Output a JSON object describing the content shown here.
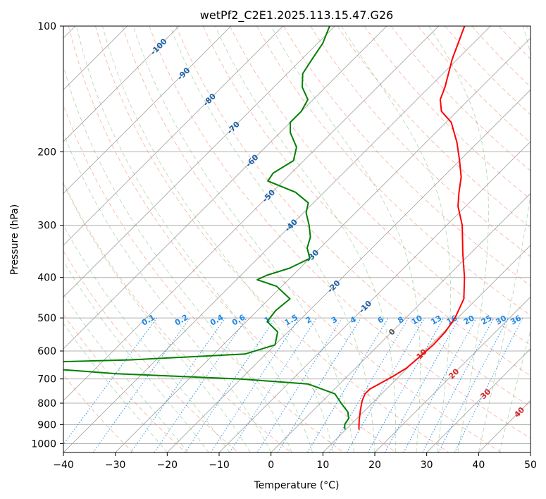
{
  "chart_data": {
    "type": "line",
    "subtype": "skew-t log-p diagram",
    "title": "wetPf2_C2E1.2025.113.15.47.G26",
    "xlabel": "Temperature (°C)",
    "ylabel": "Pressure (hPa)",
    "xlim": [
      -40,
      50
    ],
    "ylim": [
      1050,
      100
    ],
    "y_scale": "log",
    "grid": true,
    "x_ticks": [
      "−40",
      "−30",
      "−20",
      "−10",
      "0",
      "10",
      "20",
      "30",
      "40",
      "50"
    ],
    "y_ticks": [
      "100",
      "200",
      "300",
      "400",
      "500",
      "600",
      "700",
      "800",
      "900",
      "1000"
    ],
    "x_tick_values": [
      -40,
      -30,
      -20,
      -10,
      0,
      10,
      20,
      30,
      40,
      50
    ],
    "y_tick_values": [
      100,
      200,
      300,
      400,
      500,
      600,
      700,
      800,
      900,
      1000
    ],
    "series": [
      {
        "role": "temperature",
        "color": "#ff0000",
        "points": [
          {
            "p": 925,
            "t": 12.5
          },
          {
            "p": 880,
            "t": 10.8
          },
          {
            "p": 830,
            "t": 9.0
          },
          {
            "p": 790,
            "t": 7.6
          },
          {
            "p": 760,
            "t": 6.8
          },
          {
            "p": 740,
            "t": 6.8
          },
          {
            "p": 715,
            "t": 7.8
          },
          {
            "p": 690,
            "t": 8.8
          },
          {
            "p": 660,
            "t": 9.8
          },
          {
            "p": 620,
            "t": 10.2
          },
          {
            "p": 580,
            "t": 10.5
          },
          {
            "p": 540,
            "t": 10.3
          },
          {
            "p": 500,
            "t": 9.5
          },
          {
            "p": 450,
            "t": 7.5
          },
          {
            "p": 400,
            "t": 3.5
          },
          {
            "p": 350,
            "t": -1.5
          },
          {
            "p": 300,
            "t": -7.0
          },
          {
            "p": 270,
            "t": -11.5
          },
          {
            "p": 250,
            "t": -14.0
          },
          {
            "p": 230,
            "t": -16.5
          },
          {
            "p": 210,
            "t": -20.0
          },
          {
            "p": 190,
            "t": -24.0
          },
          {
            "p": 170,
            "t": -29.0
          },
          {
            "p": 160,
            "t": -33.0
          },
          {
            "p": 150,
            "t": -35.5
          },
          {
            "p": 140,
            "t": -37.0
          },
          {
            "p": 120,
            "t": -41.0
          },
          {
            "p": 100,
            "t": -45.0
          }
        ]
      },
      {
        "role": "dewpoint",
        "color": "#008000",
        "points": [
          {
            "p": 925,
            "t": 9.8
          },
          {
            "p": 900,
            "t": 8.8
          },
          {
            "p": 870,
            "t": 8.4
          },
          {
            "p": 840,
            "t": 7.0
          },
          {
            "p": 800,
            "t": 4.0
          },
          {
            "p": 760,
            "t": 1.0
          },
          {
            "p": 720,
            "t": -6.0
          },
          {
            "p": 700,
            "t": -20.0
          },
          {
            "p": 680,
            "t": -45.0
          },
          {
            "p": 660,
            "t": -60.0
          },
          {
            "p": 640,
            "t": -65.0
          },
          {
            "p": 630,
            "t": -45.0
          },
          {
            "p": 610,
            "t": -24.0
          },
          {
            "p": 580,
            "t": -20.0
          },
          {
            "p": 540,
            "t": -22.0
          },
          {
            "p": 510,
            "t": -26.0
          },
          {
            "p": 480,
            "t": -26.5
          },
          {
            "p": 450,
            "t": -26.0
          },
          {
            "p": 420,
            "t": -31.0
          },
          {
            "p": 405,
            "t": -36.0
          },
          {
            "p": 395,
            "t": -35.0
          },
          {
            "p": 380,
            "t": -32.0
          },
          {
            "p": 360,
            "t": -30.0
          },
          {
            "p": 340,
            "t": -32.5
          },
          {
            "p": 320,
            "t": -34.0
          },
          {
            "p": 300,
            "t": -36.5
          },
          {
            "p": 280,
            "t": -39.5
          },
          {
            "p": 265,
            "t": -41.0
          },
          {
            "p": 250,
            "t": -45.5
          },
          {
            "p": 235,
            "t": -53.0
          },
          {
            "p": 225,
            "t": -53.5
          },
          {
            "p": 210,
            "t": -52.0
          },
          {
            "p": 195,
            "t": -54.0
          },
          {
            "p": 180,
            "t": -58.0
          },
          {
            "p": 170,
            "t": -60.0
          },
          {
            "p": 160,
            "t": -60.0
          },
          {
            "p": 150,
            "t": -61.0
          },
          {
            "p": 140,
            "t": -64.5
          },
          {
            "p": 130,
            "t": -67.0
          },
          {
            "p": 120,
            "t": -68.0
          },
          {
            "p": 110,
            "t": -69.0
          },
          {
            "p": 100,
            "t": -71.0
          }
        ]
      }
    ],
    "isotherm_color": "#9e9e9e",
    "dry_adiabat_color": "#f08060",
    "moist_adiabat_color": "#60b060",
    "mixing_ratio_color": "#1e88e5",
    "isotherm_labels": [
      {
        "value": -100,
        "text": "-100",
        "color": "#1a5fa8"
      },
      {
        "value": -90,
        "text": "-90",
        "color": "#1a5fa8"
      },
      {
        "value": -80,
        "text": "-80",
        "color": "#1a5fa8"
      },
      {
        "value": -70,
        "text": "-70",
        "color": "#1a5fa8"
      },
      {
        "value": -60,
        "text": "-60",
        "color": "#1a5fa8"
      },
      {
        "value": -50,
        "text": "-50",
        "color": "#1a5fa8"
      },
      {
        "value": -40,
        "text": "-40",
        "color": "#1a5fa8"
      },
      {
        "value": -30,
        "text": "-30",
        "color": "#1a5fa8"
      },
      {
        "value": -20,
        "text": "-20",
        "color": "#1a5fa8"
      },
      {
        "value": -10,
        "text": "-10",
        "color": "#1a5fa8"
      },
      {
        "value": 0,
        "text": "0",
        "color": "#555555"
      },
      {
        "value": 10,
        "text": "10",
        "color": "#d62728"
      },
      {
        "value": 20,
        "text": "20",
        "color": "#d62728"
      },
      {
        "value": 30,
        "text": "30",
        "color": "#d62728"
      },
      {
        "value": 40,
        "text": "40",
        "color": "#d62728"
      }
    ],
    "mixing_ratio_labels": [
      "0.1",
      "0.2",
      "0.4",
      "0.6",
      "1",
      "1.5",
      "2",
      "3",
      "4",
      "6",
      "8",
      "10",
      "13",
      "16",
      "20",
      "25",
      "30",
      "36"
    ],
    "mixing_ratio_values": [
      0.1,
      0.2,
      0.4,
      0.6,
      1,
      1.5,
      2,
      3,
      4,
      6,
      8,
      10,
      13,
      16,
      20,
      25,
      30,
      36
    ]
  }
}
